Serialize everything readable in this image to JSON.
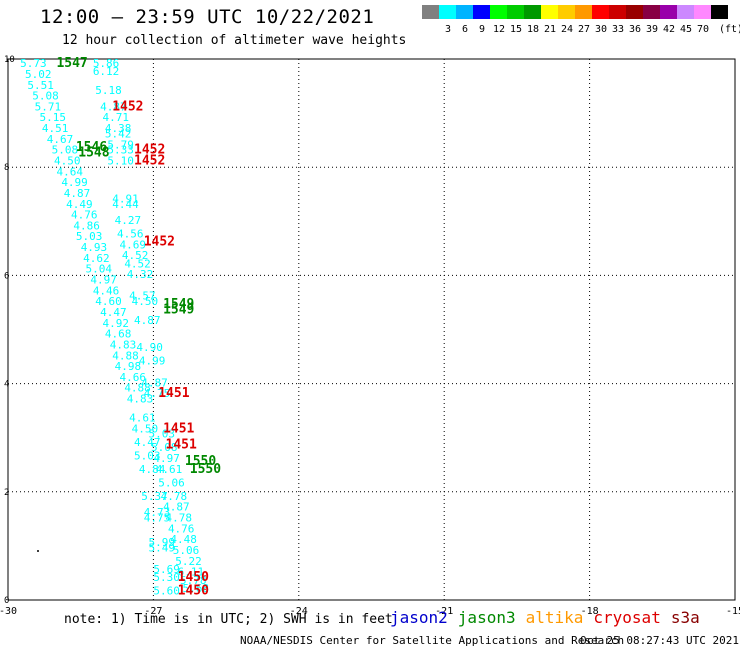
{
  "header": {
    "title": "12:00 – 23:59 UTC 10/22/2021",
    "subtitle": "12 hour collection of altimeter wave heights"
  },
  "colorbar": {
    "unit": "(ft)",
    "swatches": [
      {
        "label": "",
        "color": "#808080"
      },
      {
        "label": "3",
        "color": "#00ffff"
      },
      {
        "label": "6",
        "color": "#00b4ff"
      },
      {
        "label": "9",
        "color": "#0000ff"
      },
      {
        "label": "12",
        "color": "#00ff00"
      },
      {
        "label": "15",
        "color": "#00cc00"
      },
      {
        "label": "18",
        "color": "#009900"
      },
      {
        "label": "21",
        "color": "#ffff00"
      },
      {
        "label": "24",
        "color": "#ffcc00"
      },
      {
        "label": "27",
        "color": "#ff9900"
      },
      {
        "label": "30",
        "color": "#ff0000"
      },
      {
        "label": "33",
        "color": "#cc0000"
      },
      {
        "label": "36",
        "color": "#990000"
      },
      {
        "label": "39",
        "color": "#880044"
      },
      {
        "label": "42",
        "color": "#9900aa"
      },
      {
        "label": "45",
        "color": "#cc88ff"
      },
      {
        "label": "70",
        "color": "#ff88ff"
      },
      {
        "label": "",
        "color": "#000000"
      }
    ]
  },
  "map": {
    "lon_range": [
      -30,
      -15
    ],
    "lat_range": [
      0,
      10
    ],
    "x_ticks": [
      "-30",
      "-27",
      "-24",
      "-21",
      "-18",
      "-15"
    ],
    "y_ticks": [
      "0",
      "2",
      "4",
      "6",
      "8",
      "10"
    ],
    "track_color": "#00ffff",
    "time_colors": {
      "green": "#008800",
      "red": "#dd0000"
    },
    "time_labels": [
      {
        "text": "1547",
        "lon": -29.0,
        "lat": 9.85,
        "color": "green"
      },
      {
        "text": "1452",
        "lon": -27.85,
        "lat": 9.05,
        "color": "red"
      },
      {
        "text": "1546",
        "lon": -28.6,
        "lat": 8.3,
        "color": "green"
      },
      {
        "text": "1548",
        "lon": -28.55,
        "lat": 8.2,
        "color": "green"
      },
      {
        "text": "1452",
        "lon": -27.4,
        "lat": 8.25,
        "color": "red"
      },
      {
        "text": "1452",
        "lon": -27.4,
        "lat": 8.05,
        "color": "red"
      },
      {
        "text": "1452",
        "lon": -27.2,
        "lat": 6.55,
        "color": "red"
      },
      {
        "text": "1549",
        "lon": -26.8,
        "lat": 5.4,
        "color": "green"
      },
      {
        "text": "1549",
        "lon": -26.8,
        "lat": 5.3,
        "color": "green"
      },
      {
        "text": "1451",
        "lon": -26.9,
        "lat": 3.75,
        "color": "red"
      },
      {
        "text": "1451",
        "lon": -26.8,
        "lat": 3.1,
        "color": "red"
      },
      {
        "text": "1451",
        "lon": -26.75,
        "lat": 2.8,
        "color": "red"
      },
      {
        "text": "1550",
        "lon": -26.35,
        "lat": 2.5,
        "color": "green"
      },
      {
        "text": "1550",
        "lon": -26.25,
        "lat": 2.35,
        "color": "green"
      },
      {
        "text": "1450",
        "lon": -26.5,
        "lat": 0.35,
        "color": "red"
      },
      {
        "text": "1450",
        "lon": -26.5,
        "lat": 0.1,
        "color": "red"
      }
    ],
    "track_a": [
      {
        "v": "5.73",
        "lon": -29.75,
        "lat": 9.85
      },
      {
        "v": "5.02",
        "lon": -29.65,
        "lat": 9.65
      },
      {
        "v": "5.51",
        "lon": -29.6,
        "lat": 9.45
      },
      {
        "v": "5.08",
        "lon": -29.5,
        "lat": 9.25
      },
      {
        "v": "5.71",
        "lon": -29.45,
        "lat": 9.05
      },
      {
        "v": "5.15",
        "lon": -29.35,
        "lat": 8.85
      },
      {
        "v": "4.51",
        "lon": -29.3,
        "lat": 8.65
      },
      {
        "v": "4.67",
        "lon": -29.2,
        "lat": 8.45
      },
      {
        "v": "5.08",
        "lon": -29.1,
        "lat": 8.25
      },
      {
        "v": "4.50",
        "lon": -29.05,
        "lat": 8.05
      },
      {
        "v": "4.64",
        "lon": -29.0,
        "lat": 7.85
      },
      {
        "v": "4.99",
        "lon": -28.9,
        "lat": 7.65
      },
      {
        "v": "4.87",
        "lon": -28.85,
        "lat": 7.45
      },
      {
        "v": "4.49",
        "lon": -28.8,
        "lat": 7.25
      },
      {
        "v": "4.76",
        "lon": -28.7,
        "lat": 7.05
      },
      {
        "v": "4.86",
        "lon": -28.65,
        "lat": 6.85
      },
      {
        "v": "5.03",
        "lon": -28.6,
        "lat": 6.65
      },
      {
        "v": "4.93",
        "lon": -28.5,
        "lat": 6.45
      },
      {
        "v": "4.62",
        "lon": -28.45,
        "lat": 6.25
      },
      {
        "v": "5.04",
        "lon": -28.4,
        "lat": 6.05
      },
      {
        "v": "4.97",
        "lon": -28.3,
        "lat": 5.85
      },
      {
        "v": "4.46",
        "lon": -28.25,
        "lat": 5.65
      },
      {
        "v": "4.60",
        "lon": -28.2,
        "lat": 5.45
      },
      {
        "v": "4.47",
        "lon": -28.1,
        "lat": 5.25
      },
      {
        "v": "4.92",
        "lon": -28.05,
        "lat": 5.05
      },
      {
        "v": "4.68",
        "lon": -28.0,
        "lat": 4.85
      },
      {
        "v": "4.83",
        "lon": -27.9,
        "lat": 4.65
      },
      {
        "v": "4.88",
        "lon": -27.85,
        "lat": 4.45
      },
      {
        "v": "4.98",
        "lon": -27.8,
        "lat": 4.25
      },
      {
        "v": "4.66",
        "lon": -27.7,
        "lat": 4.05
      },
      {
        "v": "4.88",
        "lon": -27.6,
        "lat": 3.85
      },
      {
        "v": "4.83",
        "lon": -27.55,
        "lat": 3.65
      },
      {
        "v": "4.61",
        "lon": -27.5,
        "lat": 3.3
      },
      {
        "v": "4.50",
        "lon": -27.45,
        "lat": 3.1
      },
      {
        "v": "4.47",
        "lon": -27.4,
        "lat": 2.85
      },
      {
        "v": "5.03",
        "lon": -27.4,
        "lat": 2.6
      },
      {
        "v": "4.84",
        "lon": -27.3,
        "lat": 2.35
      },
      {
        "v": "5.37",
        "lon": -27.25,
        "lat": 1.85
      },
      {
        "v": "4.73",
        "lon": -27.2,
        "lat": 1.55
      },
      {
        "v": "4.75",
        "lon": -27.2,
        "lat": 1.45
      },
      {
        "v": "5.99",
        "lon": -27.1,
        "lat": 1.0
      },
      {
        "v": "5.49",
        "lon": -27.1,
        "lat": 0.9
      },
      {
        "v": "5.69",
        "lon": -27.0,
        "lat": 0.5
      },
      {
        "v": "5.30",
        "lon": -27.0,
        "lat": 0.35
      },
      {
        "v": "5.60",
        "lon": -27.0,
        "lat": 0.1
      }
    ],
    "track_b": [
      {
        "v": "5.86",
        "lon": -28.25,
        "lat": 9.85
      },
      {
        "v": "6.12",
        "lon": -28.25,
        "lat": 9.7
      },
      {
        "v": "5.18",
        "lon": -28.2,
        "lat": 9.35
      },
      {
        "v": "4.87",
        "lon": -28.1,
        "lat": 9.05
      },
      {
        "v": "4.71",
        "lon": -28.05,
        "lat": 8.85
      },
      {
        "v": "4.38",
        "lon": -28.0,
        "lat": 8.65
      },
      {
        "v": "5.42",
        "lon": -28.0,
        "lat": 8.55
      },
      {
        "v": "5.79",
        "lon": -27.95,
        "lat": 8.35
      },
      {
        "v": "5.33",
        "lon": -27.95,
        "lat": 8.25
      },
      {
        "v": "5.10",
        "lon": -27.95,
        "lat": 8.05
      },
      {
        "v": "4.91",
        "lon": -27.85,
        "lat": 7.35
      },
      {
        "v": "4.44",
        "lon": -27.85,
        "lat": 7.25
      },
      {
        "v": "4.27",
        "lon": -27.8,
        "lat": 6.95
      },
      {
        "v": "4.56",
        "lon": -27.75,
        "lat": 6.7
      },
      {
        "v": "4.69",
        "lon": -27.7,
        "lat": 6.5
      },
      {
        "v": "4.52",
        "lon": -27.65,
        "lat": 6.3
      },
      {
        "v": "4.52",
        "lon": -27.6,
        "lat": 6.15
      },
      {
        "v": "4.32",
        "lon": -27.55,
        "lat": 5.95
      },
      {
        "v": "4.57",
        "lon": -27.5,
        "lat": 5.55
      },
      {
        "v": "4.50",
        "lon": -27.45,
        "lat": 5.45
      },
      {
        "v": "4.87",
        "lon": -27.4,
        "lat": 5.1
      },
      {
        "v": "4.90",
        "lon": -27.35,
        "lat": 4.6
      },
      {
        "v": "4.99",
        "lon": -27.3,
        "lat": 4.35
      },
      {
        "v": "4.87",
        "lon": -27.25,
        "lat": 3.95
      },
      {
        "v": "4.75",
        "lon": -27.2,
        "lat": 3.75
      },
      {
        "v": "5.03",
        "lon": -27.1,
        "lat": 3.0
      },
      {
        "v": "5.08",
        "lon": -27.05,
        "lat": 2.75
      },
      {
        "v": "4.97",
        "lon": -27.0,
        "lat": 2.55
      },
      {
        "v": "4.61",
        "lon": -26.95,
        "lat": 2.35
      },
      {
        "v": "5.06",
        "lon": -26.9,
        "lat": 2.1
      },
      {
        "v": "4.78",
        "lon": -26.85,
        "lat": 1.85
      },
      {
        "v": "4.87",
        "lon": -26.8,
        "lat": 1.65
      },
      {
        "v": "4.78",
        "lon": -26.75,
        "lat": 1.45
      },
      {
        "v": "4.76",
        "lon": -26.7,
        "lat": 1.25
      },
      {
        "v": "4.48",
        "lon": -26.65,
        "lat": 1.05
      },
      {
        "v": "5.06",
        "lon": -26.6,
        "lat": 0.85
      },
      {
        "v": "5.22",
        "lon": -26.55,
        "lat": 0.65
      },
      {
        "v": "6.11",
        "lon": -26.5,
        "lat": 0.45
      },
      {
        "v": "5.78",
        "lon": -26.45,
        "lat": 0.3
      },
      {
        "v": "5.68",
        "lon": -26.4,
        "lat": 0.15
      }
    ]
  },
  "footer": {
    "note": "note: 1) Time is in UTC; 2) SWH is in feet",
    "satellites": [
      {
        "name": "jason2",
        "color": "#0000cc"
      },
      {
        "name": "jason3",
        "color": "#008800"
      },
      {
        "name": "altika",
        "color": "#ff9900"
      },
      {
        "name": "cryosat",
        "color": "#dd0000"
      },
      {
        "name": "s3a",
        "color": "#880000"
      }
    ],
    "credit": "NOAA/NESDIS Center for Satellite Applications and Research",
    "timestamp": "Oct 25 08:27:43 UTC 2021"
  }
}
